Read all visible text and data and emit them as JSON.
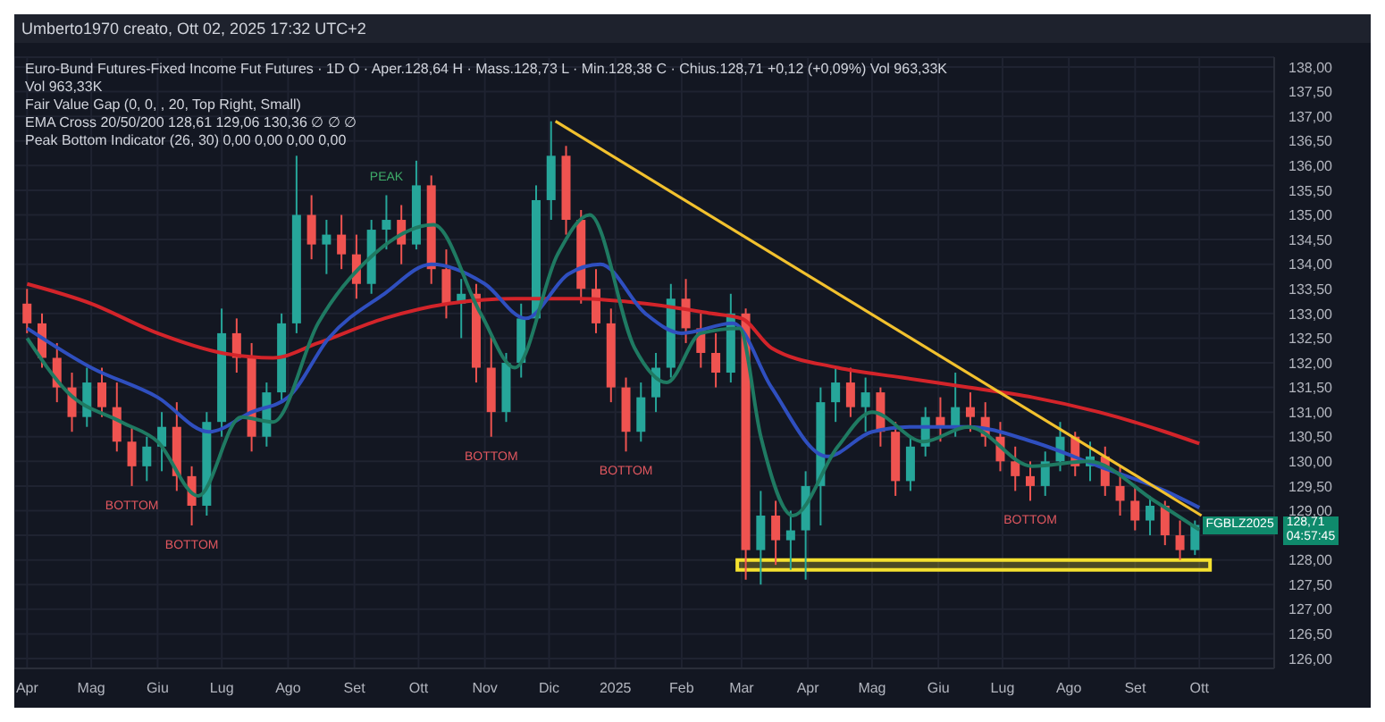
{
  "chart_data": {
    "type": "candlestick",
    "subtitle": "Umberto1970 creato, Ott 02, 2025 17:32 UTC+2",
    "title": "Euro-Bund Futures-Fixed Income Fut Futures · 1D  O · Aper.128,64  H · Mass.128,73  L · Min.128,38  C · Chius.128,71 +0,12 (+0,09%)  Vol 963,33K",
    "annotations": [
      "Vol 963,33K",
      "Fair Value Gap (0, 0, , 20, Top Right, Small)",
      "EMA Cross 20/50/200 128,61 129,06 130,36 ∅ ∅ ∅",
      "Peak Bottom Indicator (26, 30) 0,00 0,00 0,00 0,00",
      {
        "text": "PEAK",
        "x": "2024-09-16",
        "y": 135.4
      },
      {
        "text": "BOTTOM",
        "x": "2024-05-20",
        "y": 129.5
      },
      {
        "text": "BOTTOM",
        "x": "2024-06-17",
        "y": 128.7
      },
      {
        "text": "BOTTOM",
        "x": "2024-11-04",
        "y": 130.5
      },
      {
        "text": "BOTTOM",
        "x": "2025-01-06",
        "y": 130.2
      },
      {
        "text": "BOTTOM",
        "x": "2025-07-14",
        "y": 129.2
      },
      {
        "text": "FGBLZ2025",
        "x": "2025-09-29",
        "y": 128.71
      },
      "128,71",
      "04:57:45"
    ],
    "x": [
      "2024-04-01",
      "2024-04-08",
      "2024-04-15",
      "2024-04-22",
      "2024-04-29",
      "2024-05-06",
      "2024-05-13",
      "2024-05-20",
      "2024-05-27",
      "2024-06-03",
      "2024-06-10",
      "2024-06-17",
      "2024-06-24",
      "2024-07-01",
      "2024-07-08",
      "2024-07-15",
      "2024-07-22",
      "2024-07-29",
      "2024-08-05",
      "2024-08-12",
      "2024-08-19",
      "2024-08-26",
      "2024-09-02",
      "2024-09-09",
      "2024-09-16",
      "2024-09-23",
      "2024-09-30",
      "2024-10-07",
      "2024-10-14",
      "2024-10-21",
      "2024-10-28",
      "2024-11-04",
      "2024-11-11",
      "2024-11-18",
      "2024-11-25",
      "2024-12-02",
      "2024-12-09",
      "2024-12-16",
      "2024-12-23",
      "2024-12-30",
      "2025-01-06",
      "2025-01-13",
      "2025-01-20",
      "2025-01-27",
      "2025-02-03",
      "2025-02-10",
      "2025-02-17",
      "2025-02-24",
      "2025-03-03",
      "2025-03-10",
      "2025-03-17",
      "2025-03-24",
      "2025-03-31",
      "2025-04-07",
      "2025-04-14",
      "2025-04-21",
      "2025-04-28",
      "2025-05-05",
      "2025-05-12",
      "2025-05-19",
      "2025-05-26",
      "2025-06-02",
      "2025-06-09",
      "2025-06-16",
      "2025-06-23",
      "2025-06-30",
      "2025-07-07",
      "2025-07-14",
      "2025-07-21",
      "2025-07-28",
      "2025-08-04",
      "2025-08-11",
      "2025-08-18",
      "2025-08-25",
      "2025-09-01",
      "2025-09-08",
      "2025-09-15",
      "2025-09-22",
      "2025-09-29"
    ],
    "ohlc": [
      [
        133.2,
        133.5,
        132.6,
        132.8
      ],
      [
        132.8,
        133.0,
        131.9,
        132.1
      ],
      [
        132.1,
        132.4,
        131.2,
        131.5
      ],
      [
        131.5,
        131.8,
        130.6,
        130.9
      ],
      [
        130.9,
        131.9,
        130.7,
        131.6
      ],
      [
        131.6,
        131.9,
        130.9,
        131.1
      ],
      [
        131.1,
        131.6,
        130.2,
        130.4
      ],
      [
        130.4,
        130.7,
        129.5,
        129.9
      ],
      [
        129.9,
        130.5,
        129.6,
        130.3
      ],
      [
        130.3,
        131.0,
        129.8,
        130.7
      ],
      [
        130.7,
        131.2,
        129.4,
        129.7
      ],
      [
        129.7,
        129.9,
        128.7,
        129.1
      ],
      [
        129.1,
        131.0,
        128.9,
        130.8
      ],
      [
        130.8,
        133.1,
        130.5,
        132.6
      ],
      [
        132.6,
        132.9,
        131.8,
        132.1
      ],
      [
        132.1,
        132.4,
        130.2,
        130.5
      ],
      [
        130.5,
        131.6,
        130.3,
        131.4
      ],
      [
        131.4,
        133.0,
        131.2,
        132.8
      ],
      [
        132.8,
        136.2,
        132.6,
        135.0
      ],
      [
        135.0,
        135.4,
        134.1,
        134.4
      ],
      [
        134.4,
        134.9,
        133.8,
        134.6
      ],
      [
        134.6,
        135.0,
        133.9,
        134.2
      ],
      [
        134.2,
        134.6,
        133.3,
        133.6
      ],
      [
        133.6,
        134.9,
        133.4,
        134.7
      ],
      [
        134.7,
        135.4,
        134.3,
        134.9
      ],
      [
        134.9,
        135.2,
        134.0,
        134.4
      ],
      [
        134.4,
        136.1,
        134.3,
        135.6
      ],
      [
        135.6,
        135.8,
        133.6,
        133.9
      ],
      [
        133.9,
        134.3,
        132.9,
        133.2
      ],
      [
        133.2,
        133.7,
        132.5,
        133.4
      ],
      [
        133.4,
        133.6,
        131.6,
        131.9
      ],
      [
        131.9,
        132.6,
        130.5,
        131.0
      ],
      [
        131.0,
        132.2,
        130.8,
        132.0
      ],
      [
        132.0,
        133.2,
        131.7,
        132.9
      ],
      [
        132.9,
        135.6,
        132.8,
        135.3
      ],
      [
        135.3,
        136.9,
        134.9,
        136.2
      ],
      [
        136.2,
        136.4,
        134.6,
        134.9
      ],
      [
        134.9,
        135.1,
        133.2,
        133.5
      ],
      [
        133.5,
        133.9,
        132.6,
        132.8
      ],
      [
        132.8,
        133.1,
        131.2,
        131.5
      ],
      [
        131.5,
        131.7,
        130.2,
        130.6
      ],
      [
        130.6,
        131.6,
        130.4,
        131.3
      ],
      [
        131.3,
        132.2,
        131.0,
        131.9
      ],
      [
        131.9,
        133.6,
        131.7,
        133.3
      ],
      [
        133.3,
        133.7,
        132.4,
        132.7
      ],
      [
        132.7,
        133.0,
        131.9,
        132.2
      ],
      [
        132.2,
        132.6,
        131.5,
        131.8
      ],
      [
        131.8,
        133.4,
        131.6,
        133.0
      ],
      [
        133.0,
        133.1,
        127.6,
        128.2
      ],
      [
        128.2,
        129.4,
        127.5,
        128.9
      ],
      [
        128.9,
        129.2,
        127.9,
        128.4
      ],
      [
        128.4,
        129.0,
        127.8,
        128.6
      ],
      [
        128.6,
        129.8,
        127.6,
        129.5
      ],
      [
        129.5,
        131.5,
        128.7,
        131.2
      ],
      [
        131.2,
        131.9,
        130.8,
        131.6
      ],
      [
        131.6,
        131.9,
        130.9,
        131.1
      ],
      [
        131.1,
        131.7,
        130.6,
        131.4
      ],
      [
        131.4,
        131.5,
        130.3,
        130.6
      ],
      [
        130.6,
        130.8,
        129.3,
        129.6
      ],
      [
        129.6,
        130.5,
        129.4,
        130.3
      ],
      [
        130.3,
        131.1,
        130.1,
        130.9
      ],
      [
        130.9,
        131.3,
        130.4,
        130.7
      ],
      [
        130.7,
        131.8,
        130.5,
        131.1
      ],
      [
        131.1,
        131.4,
        130.6,
        130.9
      ],
      [
        130.9,
        131.2,
        130.3,
        130.5
      ],
      [
        130.5,
        130.8,
        129.8,
        130.0
      ],
      [
        130.0,
        130.3,
        129.4,
        129.7
      ],
      [
        129.7,
        130.0,
        129.2,
        129.5
      ],
      [
        129.5,
        130.2,
        129.3,
        130.0
      ],
      [
        130.0,
        130.8,
        129.8,
        130.5
      ],
      [
        130.5,
        130.6,
        129.7,
        129.9
      ],
      [
        129.9,
        130.4,
        129.6,
        130.1
      ],
      [
        130.1,
        130.3,
        129.3,
        129.5
      ],
      [
        129.5,
        129.9,
        128.9,
        129.2
      ],
      [
        129.2,
        129.5,
        128.6,
        128.8
      ],
      [
        128.8,
        129.3,
        128.5,
        129.1
      ],
      [
        129.1,
        129.2,
        128.3,
        128.5
      ],
      [
        128.5,
        128.8,
        128.0,
        128.2
      ],
      [
        128.2,
        128.8,
        128.1,
        128.71
      ]
    ],
    "series": [
      {
        "type": "line",
        "color": "#d3242a",
        "x": [
          "2024-04-01",
          "2024-05-01",
          "2024-06-01",
          "2024-07-01",
          "2024-07-25",
          "2024-08-15",
          "2024-09-15",
          "2024-10-15",
          "2024-11-15",
          "2024-12-15",
          "2025-01-15",
          "2025-02-15",
          "2025-03-01",
          "2025-03-15",
          "2025-04-15",
          "2025-05-15",
          "2025-06-15",
          "2025-07-15",
          "2025-08-15",
          "2025-09-15",
          "2025-10-01"
        ],
        "values": [
          133.6,
          133.2,
          132.6,
          132.2,
          132.1,
          132.4,
          132.9,
          133.2,
          133.3,
          133.3,
          133.2,
          133.0,
          132.9,
          132.3,
          131.9,
          131.7,
          131.5,
          131.3,
          131.0,
          130.6,
          130.36
        ]
      },
      {
        "type": "line",
        "color": "#2f4fbf",
        "x": [
          "2024-04-01",
          "2024-05-01",
          "2024-06-01",
          "2024-06-25",
          "2024-07-15",
          "2024-08-01",
          "2024-08-20",
          "2024-09-15",
          "2024-10-07",
          "2024-11-01",
          "2024-11-20",
          "2024-12-10",
          "2024-12-25",
          "2025-01-15",
          "2025-02-01",
          "2025-02-25",
          "2025-03-15",
          "2025-04-10",
          "2025-05-01",
          "2025-05-20",
          "2025-06-15",
          "2025-07-15",
          "2025-08-15",
          "2025-09-15",
          "2025-10-01"
        ],
        "values": [
          132.7,
          131.9,
          131.3,
          130.6,
          131.0,
          131.3,
          132.5,
          133.4,
          134.0,
          133.6,
          132.9,
          133.8,
          134.0,
          133.0,
          132.6,
          132.8,
          131.5,
          130.1,
          130.6,
          130.7,
          130.7,
          130.4,
          129.9,
          129.4,
          129.06
        ]
      },
      {
        "type": "line",
        "color": "#1f7a62",
        "x": [
          "2024-04-01",
          "2024-04-20",
          "2024-05-15",
          "2024-06-01",
          "2024-06-20",
          "2024-07-10",
          "2024-07-25",
          "2024-08-15",
          "2024-09-10",
          "2024-10-08",
          "2024-10-30",
          "2024-11-15",
          "2024-12-05",
          "2024-12-20",
          "2025-01-10",
          "2025-01-25",
          "2025-02-10",
          "2025-02-28",
          "2025-03-10",
          "2025-03-25",
          "2025-04-15",
          "2025-05-01",
          "2025-05-25",
          "2025-06-15",
          "2025-07-15",
          "2025-08-10",
          "2025-09-10",
          "2025-10-01"
        ],
        "values": [
          132.5,
          131.4,
          130.8,
          130.4,
          129.3,
          130.9,
          130.8,
          132.8,
          134.2,
          134.8,
          133.0,
          131.9,
          134.2,
          135.0,
          132.3,
          131.6,
          132.6,
          132.7,
          130.5,
          128.9,
          130.3,
          131.0,
          130.4,
          130.7,
          129.9,
          130.0,
          129.2,
          128.61
        ]
      },
      {
        "type": "line",
        "color": "#f2c12e",
        "x": [
          "2024-12-04",
          "2025-10-02"
        ],
        "values": [
          136.9,
          128.9
        ]
      }
    ],
    "bands": [
      {
        "axis": "y",
        "from": 127.8,
        "to": 128.0,
        "color": "#f5e12f"
      }
    ],
    "xlim": [
      "2024-03-26",
      "2025-11-05"
    ],
    "xticks": [
      {
        "value": "2024-04-01",
        "label": "Apr"
      },
      {
        "value": "2024-05-01",
        "label": "Mag"
      },
      {
        "value": "2024-06-01",
        "label": "Giu"
      },
      {
        "value": "2024-07-01",
        "label": "Lug"
      },
      {
        "value": "2024-08-01",
        "label": "Ago"
      },
      {
        "value": "2024-09-01",
        "label": "Set"
      },
      {
        "value": "2024-10-01",
        "label": "Ott"
      },
      {
        "value": "2024-11-01",
        "label": "Nov"
      },
      {
        "value": "2024-12-01",
        "label": "Dic"
      },
      {
        "value": "2025-01-01",
        "label": "2025"
      },
      {
        "value": "2025-02-01",
        "label": "Feb"
      },
      {
        "value": "2025-03-01",
        "label": "Mar"
      },
      {
        "value": "2025-04-01",
        "label": "Apr"
      },
      {
        "value": "2025-05-01",
        "label": "Mag"
      },
      {
        "value": "2025-06-01",
        "label": "Giu"
      },
      {
        "value": "2025-07-01",
        "label": "Lug"
      },
      {
        "value": "2025-08-01",
        "label": "Ago"
      },
      {
        "value": "2025-09-01",
        "label": "Set"
      },
      {
        "value": "2025-10-01",
        "label": "Ott"
      }
    ],
    "ylim": [
      125.8,
      138.2
    ],
    "yticks": [
      {
        "value": 126,
        "label": "126,00"
      },
      {
        "value": 126.5,
        "label": "126,50"
      },
      {
        "value": 127,
        "label": "127,00"
      },
      {
        "value": 127.5,
        "label": "127,50"
      },
      {
        "value": 128,
        "label": "128,00"
      },
      {
        "value": 128.5,
        "label": null
      },
      {
        "value": 129,
        "label": "129,00"
      },
      {
        "value": 129.5,
        "label": "129,50"
      },
      {
        "value": 130,
        "label": "130,00"
      },
      {
        "value": 130.5,
        "label": "130,50"
      },
      {
        "value": 131,
        "label": "131,00"
      },
      {
        "value": 131.5,
        "label": "131,50"
      },
      {
        "value": 132,
        "label": "132,00"
      },
      {
        "value": 132.5,
        "label": "132,50"
      },
      {
        "value": 133,
        "label": "133,00"
      },
      {
        "value": 133.5,
        "label": "133,50"
      },
      {
        "value": 134,
        "label": "134,00"
      },
      {
        "value": 134.5,
        "label": "134,50"
      },
      {
        "value": 135,
        "label": "135,00"
      },
      {
        "value": 135.5,
        "label": "135,50"
      },
      {
        "value": 136,
        "label": "136,00"
      },
      {
        "value": 136.5,
        "label": "136,50"
      },
      {
        "value": 137,
        "label": "137,00"
      },
      {
        "value": 137.5,
        "label": "137,50"
      },
      {
        "value": 138,
        "label": "138,00"
      }
    ],
    "grid": true
  }
}
